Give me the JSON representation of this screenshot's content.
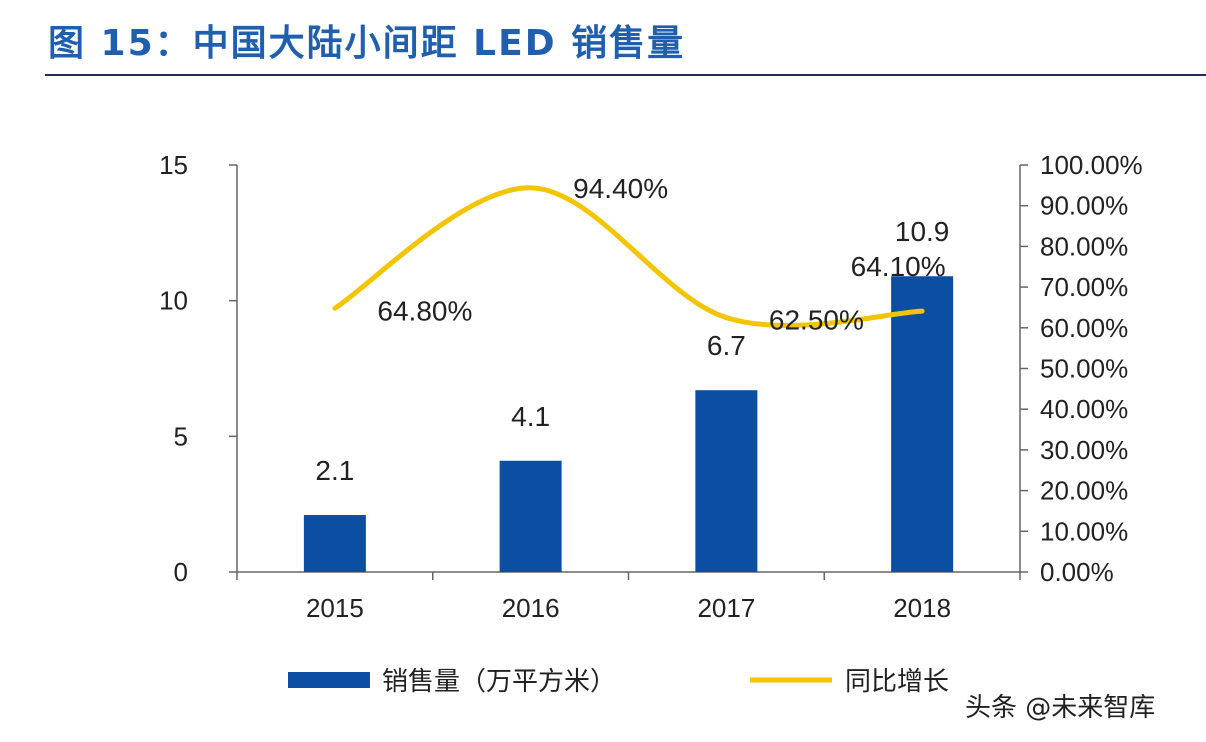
{
  "title": "图 15：中国大陆小间距 LED 销售量",
  "watermark": "头条 @未来智库",
  "chart_data": {
    "type": "bar+line",
    "categories": [
      "2015",
      "2016",
      "2017",
      "2018"
    ],
    "series": [
      {
        "name": "销售量（万平方米）",
        "type": "bar",
        "axis": "left",
        "values": [
          2.1,
          4.1,
          6.7,
          10.9
        ],
        "labels": [
          "2.1",
          "4.1",
          "6.7",
          "10.9"
        ],
        "color": "#0b4ea2"
      },
      {
        "name": "同比增长",
        "type": "line",
        "axis": "right",
        "values": [
          64.8,
          94.4,
          62.5,
          64.1
        ],
        "labels": [
          "64.80%",
          "94.40%",
          "62.50%",
          "64.10%"
        ],
        "color": "#f2c500"
      }
    ],
    "left_axis": {
      "ylim": [
        0,
        15
      ],
      "ticks": [
        "0",
        "5",
        "10",
        "15"
      ]
    },
    "right_axis": {
      "ylim": [
        0,
        100
      ],
      "ticks": [
        "0.00%",
        "10.00%",
        "20.00%",
        "30.00%",
        "40.00%",
        "50.00%",
        "60.00%",
        "70.00%",
        "80.00%",
        "90.00%",
        "100.00%"
      ]
    },
    "legend_position": "bottom",
    "grid": false
  }
}
